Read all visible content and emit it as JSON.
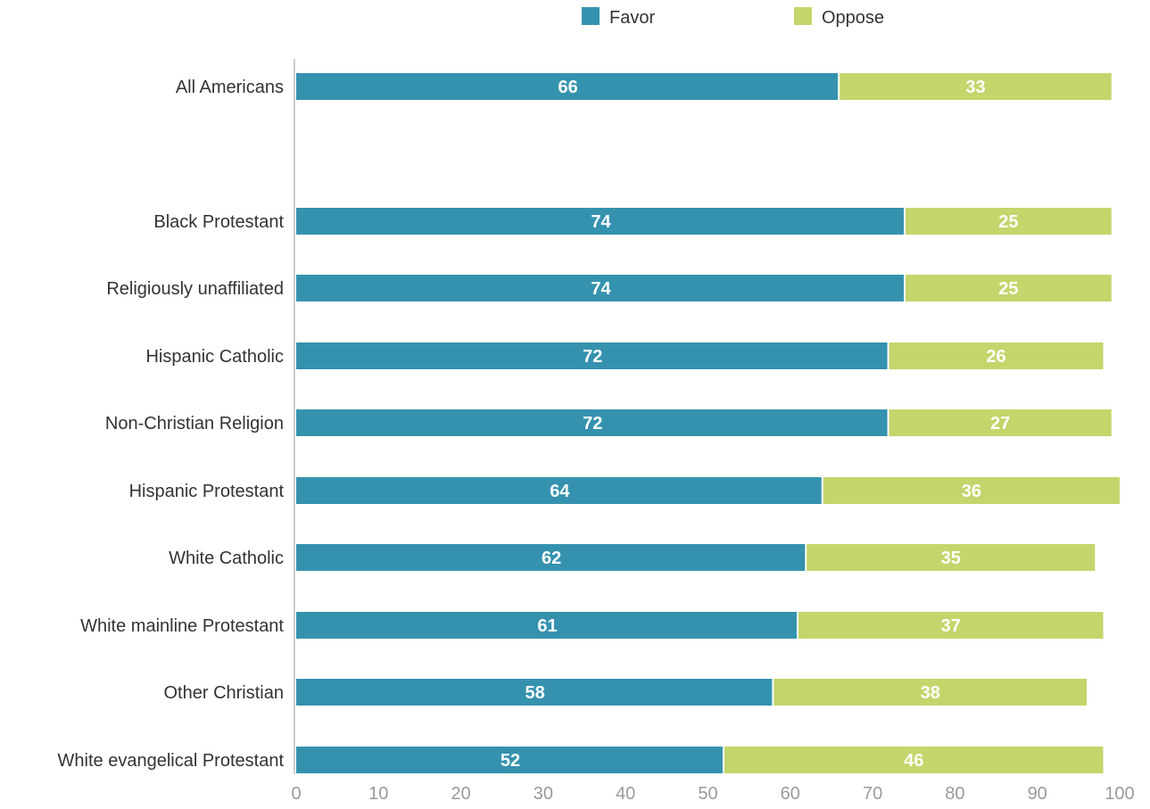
{
  "chart_data": {
    "type": "bar",
    "orientation": "horizontal",
    "stacked": true,
    "categories": [
      "All Americans",
      "Black Protestant",
      "Religiously unaffiliated",
      "Hispanic Catholic",
      "Non-Christian Religion",
      "Hispanic Protestant",
      "White Catholic",
      "White mainline Protestant",
      "Other Christian",
      "White evangelical Protestant"
    ],
    "series": [
      {
        "name": "Favor",
        "color": "#3592ae",
        "values": [
          66,
          74,
          74,
          72,
          72,
          64,
          62,
          61,
          58,
          52
        ]
      },
      {
        "name": "Oppose",
        "color": "#c3d66b",
        "values": [
          33,
          25,
          25,
          26,
          27,
          36,
          35,
          37,
          38,
          46
        ]
      }
    ],
    "xlim": [
      0,
      100
    ],
    "xticks": [
      0,
      10,
      20,
      30,
      40,
      50,
      60,
      70,
      80,
      90,
      100
    ],
    "legend_position": "top",
    "title": "",
    "xlabel": "",
    "ylabel": ""
  },
  "colors": {
    "favor": "#3592ae",
    "oppose": "#c3d66b",
    "axis_line": "#cccccc",
    "label_text": "#333333",
    "tick_text": "#9a9a9a"
  }
}
